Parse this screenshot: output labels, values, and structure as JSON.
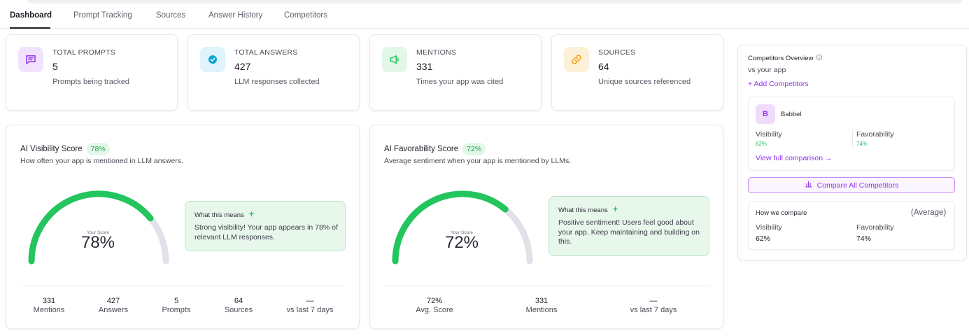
{
  "tabs": [
    {
      "label": "Dashboard",
      "active": true
    },
    {
      "label": "Prompt Tracking",
      "active": false
    },
    {
      "label": "Sources",
      "active": false
    },
    {
      "label": "Answer History",
      "active": false
    },
    {
      "label": "Competitors",
      "active": false
    }
  ],
  "stats": [
    {
      "label": "TOTAL PROMPTS",
      "value": "5",
      "desc": "Prompts being tracked",
      "icon": "message-square-icon",
      "bg": "#f1e3fd",
      "color": "#9333ea"
    },
    {
      "label": "TOTAL ANSWERS",
      "value": "427",
      "desc": "LLM responses collected",
      "icon": "check-circle-icon",
      "bg": "#dff3fb",
      "color": "#0ea5d8"
    },
    {
      "label": "MENTIONS",
      "value": "331",
      "desc": "Times your app was cited",
      "icon": "megaphone-icon",
      "bg": "#e3f7e8",
      "color": "#22c55e"
    },
    {
      "label": "SOURCES",
      "value": "64",
      "desc": "Unique sources referenced",
      "icon": "link-icon",
      "bg": "#fdf0d9",
      "color": "#f59e0b"
    }
  ],
  "visibility": {
    "title": "AI Visibility Score",
    "badge": "78%",
    "subtitle": "How often your app is mentioned in LLM answers.",
    "gauge_label": "Your Score",
    "gauge_value": "78%",
    "score": 78,
    "means_title": "What this means",
    "means_text": "Strong visibility! Your app appears in 78% of relevant LLM responses.",
    "metrics": [
      {
        "value": "331",
        "label": "Mentions"
      },
      {
        "value": "427",
        "label": "Answers"
      },
      {
        "value": "5",
        "label": "Prompts"
      },
      {
        "value": "64",
        "label": "Sources"
      },
      {
        "value": "—",
        "label": "vs last 7 days"
      }
    ]
  },
  "favorability": {
    "title": "AI Favorability Score",
    "badge": "72%",
    "subtitle": "Average sentiment when your app is mentioned by LLMs.",
    "gauge_label": "Your Score",
    "gauge_value": "72%",
    "score": 72,
    "means_title": "What this means",
    "means_text": "Positive sentiment! Users feel good about your app. Keep maintaining and building on this.",
    "metrics": [
      {
        "value": "72%",
        "label": "Avg. Score"
      },
      {
        "value": "331",
        "label": "Mentions"
      },
      {
        "value": "—",
        "label": "vs last 7 days"
      }
    ]
  },
  "competitors": {
    "title": "Competitors Overview",
    "subtitle": "vs your app",
    "add_label": "+ Add Competitors",
    "competitor": {
      "initial": "B",
      "name": "Babbel",
      "visibility_label": "Visibility",
      "visibility_value": "62%",
      "favorability_label": "Favorability",
      "favorability_value": "74%",
      "link_label": "View full comparison →"
    },
    "compare_all_label": "Compare All Competitors",
    "how_we_compare": {
      "title": "How we compare",
      "note": "(Average)",
      "visibility_label": "Visibility",
      "visibility_value": "62%",
      "favorability_label": "Favorability",
      "favorability_value": "74%"
    }
  },
  "colors": {
    "accent": "#9333ea",
    "green": "#22c55e",
    "gauge_track": "#e1e2e7"
  }
}
